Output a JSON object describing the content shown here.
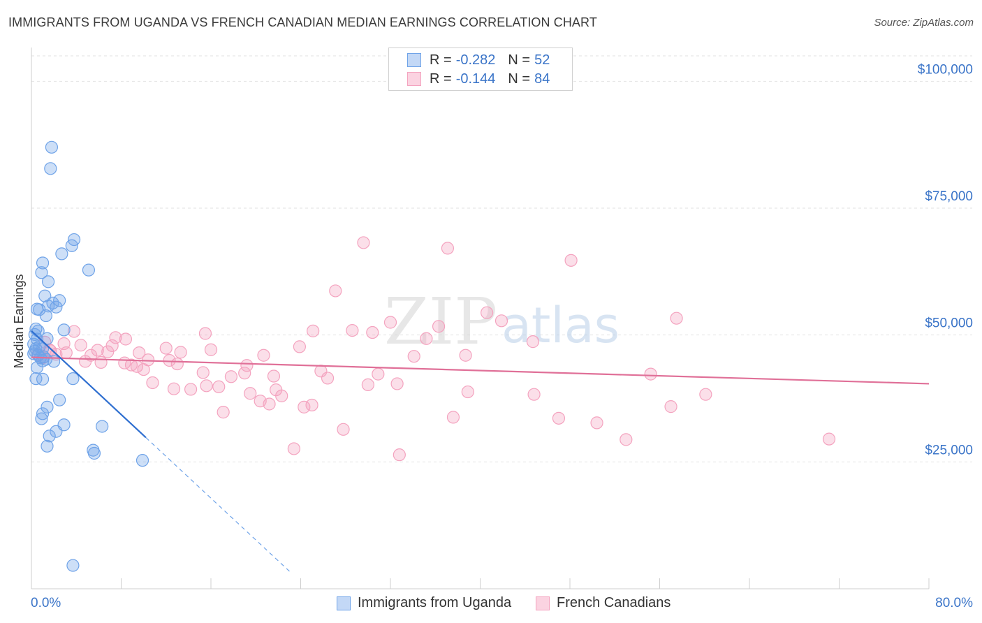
{
  "title": "IMMIGRANTS FROM UGANDA VS FRENCH CANADIAN MEDIAN EARNINGS CORRELATION CHART",
  "source": "Source: ZipAtlas.com",
  "watermark": {
    "zip": "ZIP",
    "atlas": "atlas"
  },
  "legend": {
    "r_label": "R =",
    "n_label": "N =",
    "series": [
      {
        "r": "-0.282",
        "n": "52"
      },
      {
        "r": "-0.144",
        "n": "84"
      }
    ]
  },
  "chart_data": {
    "type": "scatter",
    "title": "IMMIGRANTS FROM UGANDA VS FRENCH CANADIAN MEDIAN EARNINGS CORRELATION CHART",
    "xlabel": "",
    "ylabel": "Median Earnings",
    "xlim": [
      0,
      80
    ],
    "ylim": [
      0,
      105000
    ],
    "x_tick_labels": [
      "0.0%",
      "80.0%"
    ],
    "y_ticks": [
      25000,
      50000,
      75000,
      100000
    ],
    "y_tick_labels": [
      "$25,000",
      "$50,000",
      "$75,000",
      "$100,000"
    ],
    "grid": true,
    "legend_position": "top-center",
    "series": [
      {
        "name": "Immigrants from Uganda",
        "color": "#6fa3e8",
        "line_color": "#2f6fd0",
        "r": -0.282,
        "n": 52,
        "trend": {
          "x0": 0.0,
          "y0": 50800,
          "x1": 10.2,
          "y1": 29800,
          "extend_to_x": 23.2
        },
        "points": [
          [
            1.8,
            87000
          ],
          [
            1.7,
            82800
          ],
          [
            3.8,
            68800
          ],
          [
            3.6,
            67600
          ],
          [
            2.7,
            66000
          ],
          [
            5.1,
            62800
          ],
          [
            1.0,
            64200
          ],
          [
            0.9,
            62300
          ],
          [
            1.5,
            60500
          ],
          [
            1.2,
            57700
          ],
          [
            2.5,
            56800
          ],
          [
            1.9,
            56300
          ],
          [
            1.5,
            55700
          ],
          [
            2.2,
            55500
          ],
          [
            0.5,
            55100
          ],
          [
            0.7,
            55000
          ],
          [
            1.3,
            53800
          ],
          [
            0.4,
            51200
          ],
          [
            0.6,
            50800
          ],
          [
            0.3,
            50100
          ],
          [
            2.9,
            51000
          ],
          [
            0.5,
            49200
          ],
          [
            1.4,
            49300
          ],
          [
            0.2,
            48200
          ],
          [
            0.7,
            47700
          ],
          [
            0.4,
            47300
          ],
          [
            1.0,
            47300
          ],
          [
            0.2,
            46300
          ],
          [
            0.6,
            46000
          ],
          [
            1.1,
            45700
          ],
          [
            0.8,
            45500
          ],
          [
            1.3,
            45200
          ],
          [
            1.0,
            44900
          ],
          [
            2.0,
            44800
          ],
          [
            0.5,
            43600
          ],
          [
            0.4,
            41400
          ],
          [
            1.0,
            41300
          ],
          [
            3.7,
            41400
          ],
          [
            2.5,
            37200
          ],
          [
            1.4,
            35800
          ],
          [
            1.0,
            34500
          ],
          [
            0.9,
            33500
          ],
          [
            2.9,
            32300
          ],
          [
            6.3,
            32000
          ],
          [
            1.6,
            30100
          ],
          [
            2.2,
            31000
          ],
          [
            1.4,
            28100
          ],
          [
            5.5,
            27300
          ],
          [
            5.6,
            26700
          ],
          [
            9.9,
            25300
          ],
          [
            3.7,
            4600
          ],
          [
            0.3,
            46800
          ]
        ]
      },
      {
        "name": "French Canadians",
        "color": "#f4a3bf",
        "line_color": "#e07098",
        "r": -0.144,
        "n": 84,
        "trend": {
          "x0": 0.0,
          "y0": 45600,
          "x1": 80.0,
          "y1": 40400
        },
        "points": [
          [
            29.6,
            68200
          ],
          [
            37.1,
            67100
          ],
          [
            48.1,
            64700
          ],
          [
            27.1,
            58700
          ],
          [
            57.5,
            53300
          ],
          [
            40.6,
            54400
          ],
          [
            41.9,
            52800
          ],
          [
            32.0,
            52500
          ],
          [
            36.3,
            51700
          ],
          [
            25.1,
            50800
          ],
          [
            28.6,
            50900
          ],
          [
            30.4,
            50500
          ],
          [
            3.8,
            50700
          ],
          [
            15.5,
            50300
          ],
          [
            7.5,
            49500
          ],
          [
            8.4,
            49200
          ],
          [
            35.2,
            49300
          ],
          [
            44.7,
            48700
          ],
          [
            1.2,
            48600
          ],
          [
            4.4,
            48000
          ],
          [
            7.2,
            47900
          ],
          [
            23.9,
            47700
          ],
          [
            12.0,
            47400
          ],
          [
            16.0,
            47100
          ],
          [
            5.9,
            47000
          ],
          [
            6.8,
            46700
          ],
          [
            1.7,
            46900
          ],
          [
            3.1,
            46500
          ],
          [
            9.6,
            46500
          ],
          [
            13.3,
            46600
          ],
          [
            2.2,
            46200
          ],
          [
            5.3,
            46000
          ],
          [
            20.7,
            46000
          ],
          [
            34.1,
            45800
          ],
          [
            38.7,
            46000
          ],
          [
            1.0,
            45500
          ],
          [
            10.4,
            45100
          ],
          [
            12.3,
            45000
          ],
          [
            4.8,
            44800
          ],
          [
            6.2,
            44600
          ],
          [
            8.3,
            44500
          ],
          [
            8.9,
            44100
          ],
          [
            9.4,
            43800
          ],
          [
            19.2,
            44000
          ],
          [
            13.0,
            44300
          ],
          [
            10.0,
            43200
          ],
          [
            15.3,
            42600
          ],
          [
            19.0,
            42500
          ],
          [
            17.8,
            41800
          ],
          [
            21.6,
            41900
          ],
          [
            25.8,
            42900
          ],
          [
            26.4,
            41500
          ],
          [
            30.9,
            42300
          ],
          [
            55.2,
            42300
          ],
          [
            10.8,
            40600
          ],
          [
            15.6,
            40000
          ],
          [
            16.7,
            39800
          ],
          [
            12.7,
            39400
          ],
          [
            14.2,
            39300
          ],
          [
            19.5,
            38500
          ],
          [
            21.8,
            39200
          ],
          [
            30.0,
            40200
          ],
          [
            32.6,
            40400
          ],
          [
            22.3,
            38000
          ],
          [
            20.4,
            37000
          ],
          [
            21.2,
            36400
          ],
          [
            25.0,
            36200
          ],
          [
            24.3,
            35800
          ],
          [
            17.1,
            34800
          ],
          [
            38.9,
            38800
          ],
          [
            44.8,
            38300
          ],
          [
            60.1,
            38300
          ],
          [
            57.0,
            35900
          ],
          [
            37.6,
            33800
          ],
          [
            47.0,
            33600
          ],
          [
            50.4,
            32700
          ],
          [
            27.8,
            31400
          ],
          [
            53.0,
            29400
          ],
          [
            71.1,
            29500
          ],
          [
            23.4,
            27600
          ],
          [
            32.8,
            26400
          ],
          [
            0.6,
            46200
          ],
          [
            1.6,
            47100
          ],
          [
            2.9,
            48300
          ]
        ]
      }
    ]
  }
}
